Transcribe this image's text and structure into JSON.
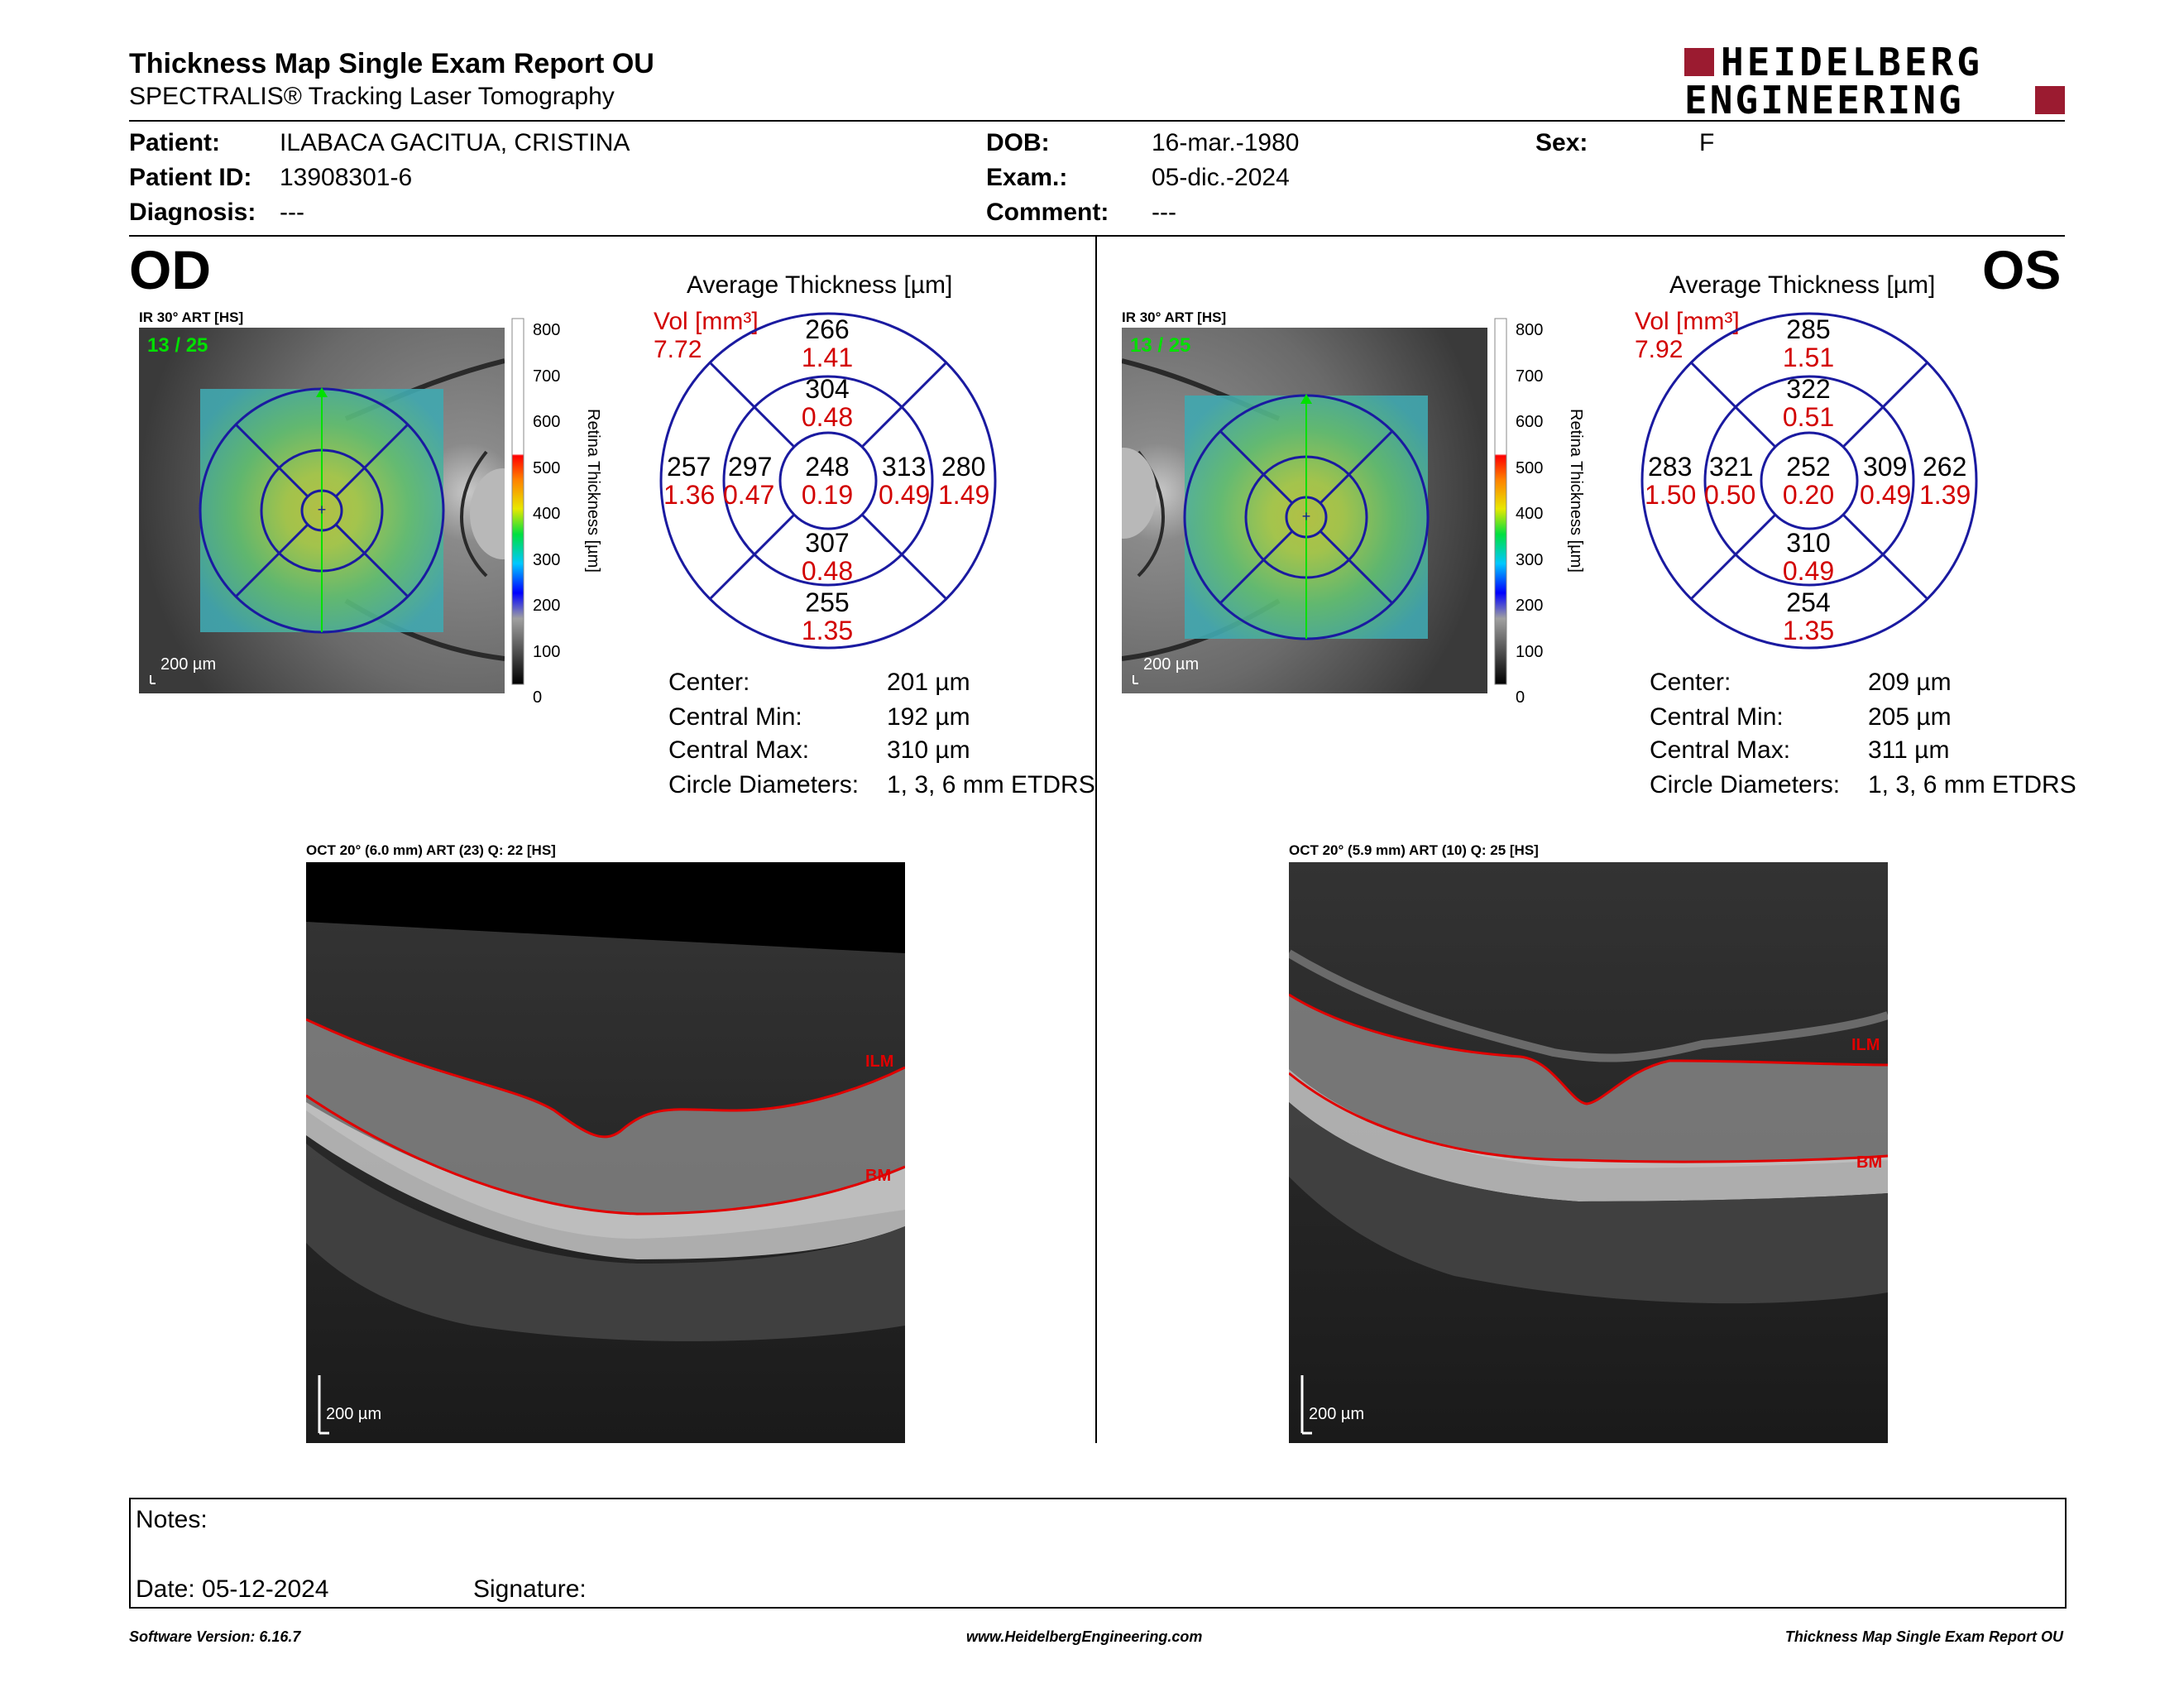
{
  "header": {
    "title": "Thickness Map Single Exam Report OU",
    "subtitle": "SPECTRALIS® Tracking Laser Tomography",
    "logo_line1": "HEIDELBERG",
    "logo_line2": "ENGINEERING"
  },
  "patient": {
    "patient_label": "Patient:",
    "patient_value": "ILABACA GACITUA, CRISTINA",
    "id_label": "Patient ID:",
    "id_value": "13908301-6",
    "diagnosis_label": "Diagnosis:",
    "diagnosis_value": "---",
    "dob_label": "DOB:",
    "dob_value": "16-mar.-1980",
    "exam_label": "Exam.:",
    "exam_value": "05-dic.-2024",
    "comment_label": "Comment:",
    "comment_value": "---",
    "sex_label": "Sex:",
    "sex_value": "F"
  },
  "colorbar": {
    "ticks": [
      "800",
      "700",
      "600",
      "500",
      "400",
      "300",
      "200",
      "100",
      "0"
    ],
    "label": "Retina Thickness [µm]"
  },
  "od": {
    "eye_label": "OD",
    "ir_label": "IR 30° ART [HS]",
    "frame": "13 / 25",
    "scale": "200 µm",
    "chart_title": "Average Thickness [µm]",
    "vol_label": "Vol [mm³]",
    "vol_value": "7.72",
    "grid": {
      "outer_top": "266",
      "outer_top_vol": "1.41",
      "inner_top": "304",
      "inner_top_vol": "0.48",
      "outer_left": "257",
      "outer_left_vol": "1.36",
      "inner_left": "297",
      "inner_left_vol": "0.47",
      "center": "248",
      "center_vol": "0.19",
      "inner_right": "313",
      "inner_right_vol": "0.49",
      "outer_right": "280",
      "outer_right_vol": "1.49",
      "inner_bottom": "307",
      "inner_bottom_vol": "0.48",
      "outer_bottom": "255",
      "outer_bottom_vol": "1.35"
    },
    "stats": {
      "center_label": "Center:",
      "center_value": "201 µm",
      "min_label": "Central Min:",
      "min_value": "192 µm",
      "max_label": "Central Max:",
      "max_value": "310 µm",
      "circ_label": "Circle Diameters:",
      "circ_value": "1, 3, 6 mm ETDRS"
    },
    "oct_label": "OCT 20° (6.0 mm) ART (23) Q: 22 [HS]",
    "oct_scale": "200 µm",
    "ilm": "ILM",
    "bm": "BM"
  },
  "os": {
    "eye_label": "OS",
    "ir_label": "IR 30° ART [HS]",
    "frame": "13 / 25",
    "scale": "200 µm",
    "chart_title": "Average Thickness [µm]",
    "vol_label": "Vol [mm³]",
    "vol_value": "7.92",
    "grid": {
      "outer_top": "285",
      "outer_top_vol": "1.51",
      "inner_top": "322",
      "inner_top_vol": "0.51",
      "outer_left": "283",
      "outer_left_vol": "1.50",
      "inner_left": "321",
      "inner_left_vol": "0.50",
      "center": "252",
      "center_vol": "0.20",
      "inner_right": "309",
      "inner_right_vol": "0.49",
      "outer_right": "262",
      "outer_right_vol": "1.39",
      "inner_bottom": "310",
      "inner_bottom_vol": "0.49",
      "outer_bottom": "254",
      "outer_bottom_vol": "1.35"
    },
    "stats": {
      "center_label": "Center:",
      "center_value": "209 µm",
      "min_label": "Central Min:",
      "min_value": "205 µm",
      "max_label": "Central Max:",
      "max_value": "311 µm",
      "circ_label": "Circle Diameters:",
      "circ_value": "1, 3, 6 mm ETDRS"
    },
    "oct_label": "OCT 20° (5.9 mm) ART (10) Q: 25 [HS]",
    "oct_scale": "200 µm",
    "ilm": "ILM",
    "bm": "BM"
  },
  "notes": {
    "notes_label": "Notes:",
    "date_label": "Date: 05-12-2024",
    "signature_label": "Signature:"
  },
  "footer": {
    "version": "Software Version: 6.16.7",
    "url": "www.HeidelbergEngineering.com",
    "report": "Thickness Map Single Exam Report OU"
  },
  "colors": {
    "brand_red": "#9b1b30",
    "grid_blue": "#1a1aa0",
    "vol_red": "#d20000"
  }
}
